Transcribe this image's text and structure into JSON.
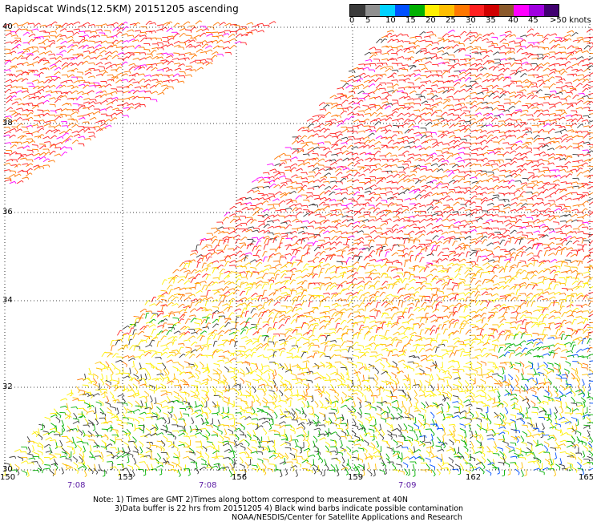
{
  "title": "Rapidscat Winds(12.5KM) 20151205 ascending",
  "colorbar": {
    "colors": [
      "#3a3a3a",
      "#909090",
      "#00d2ff",
      "#0050ff",
      "#00b000",
      "#fff000",
      "#ffbf00",
      "#ff7700",
      "#ff2020",
      "#d00000",
      "#8b5a2b",
      "#ff00ff",
      "#a000e0",
      "#400070"
    ],
    "labels": [
      "0",
      "5",
      "10",
      "15",
      "20",
      "25",
      "30",
      "35",
      "40",
      "45",
      ">50 knots"
    ]
  },
  "latitudes": [
    "40",
    "38",
    "36",
    "34",
    "32",
    "30"
  ],
  "longitudes": [
    "150",
    "153",
    "156",
    "159",
    "162",
    "165"
  ],
  "times": [
    "7:08",
    "7:08",
    "7:09"
  ],
  "notes": [
    "Note: 1) Times are GMT 2)Times along bottom correspond to measurement at 40N",
    "3)Data buffer is 22 hrs from 20151205 4) Black wind barbs indicate possible contamination",
    "NOAA/NESDIS/Center for Satellite Applications and Research"
  ]
}
